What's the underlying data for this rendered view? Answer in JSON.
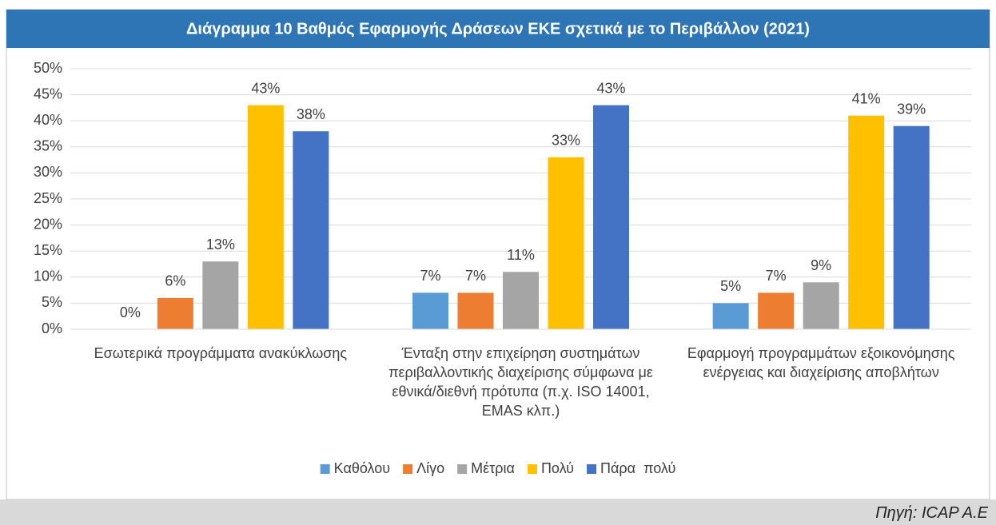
{
  "chart_data": {
    "type": "bar",
    "title": "Διάγραμμα 10 Βαθμός Εφαρμογής Δράσεων ΕΚΕ σχετικά με το Περιβάλλον (2021)",
    "categories": [
      "Εσωτερικά προγράμματα ανακύκλωσης",
      "Ένταξη στην επιχείρηση συστημάτων περιβαλλοντικής διαχείρισης σύμφωνα με εθνικά/διεθνή πρότυπα (π.χ. ISO 14001, EMAS κλπ.)",
      "Εφαρμογή προγραμμάτων εξοικονόμησης ενέργειας και διαχείρισης αποβλήτων"
    ],
    "series": [
      {
        "name": "Καθόλου",
        "color": "#5b9bd5",
        "values": [
          0,
          7,
          5
        ],
        "value_labels": [
          "0%",
          "7%",
          "5%"
        ]
      },
      {
        "name": "Λίγο",
        "color": "#ed7d31",
        "values": [
          6,
          7,
          7
        ],
        "value_labels": [
          "6%",
          "7%",
          "7%"
        ]
      },
      {
        "name": "Μέτρια",
        "color": "#a5a5a5",
        "values": [
          13,
          11,
          9
        ],
        "value_labels": [
          "13%",
          "11%",
          "9%"
        ]
      },
      {
        "name": "Πολύ",
        "color": "#ffc000",
        "values": [
          43,
          33,
          41
        ],
        "value_labels": [
          "43%",
          "33%",
          "41%"
        ]
      },
      {
        "name": "Πάρα  πολύ",
        "color": "#4472c4",
        "values": [
          38,
          43,
          39
        ],
        "value_labels": [
          "38%",
          "43%",
          "39%"
        ]
      }
    ],
    "ylim": [
      0,
      50
    ],
    "yticks": [
      {
        "value": 0,
        "label": "0%"
      },
      {
        "value": 5,
        "label": "5%"
      },
      {
        "value": 10,
        "label": "10%"
      },
      {
        "value": 15,
        "label": "15%"
      },
      {
        "value": 20,
        "label": "20%"
      },
      {
        "value": 25,
        "label": "25%"
      },
      {
        "value": 30,
        "label": "30%"
      },
      {
        "value": 35,
        "label": "35%"
      },
      {
        "value": 40,
        "label": "40%"
      },
      {
        "value": 45,
        "label": "45%"
      },
      {
        "value": 50,
        "label": "50%"
      }
    ],
    "grid": true,
    "legend": "bottom",
    "source": "Πηγή: ICAP A.E"
  }
}
